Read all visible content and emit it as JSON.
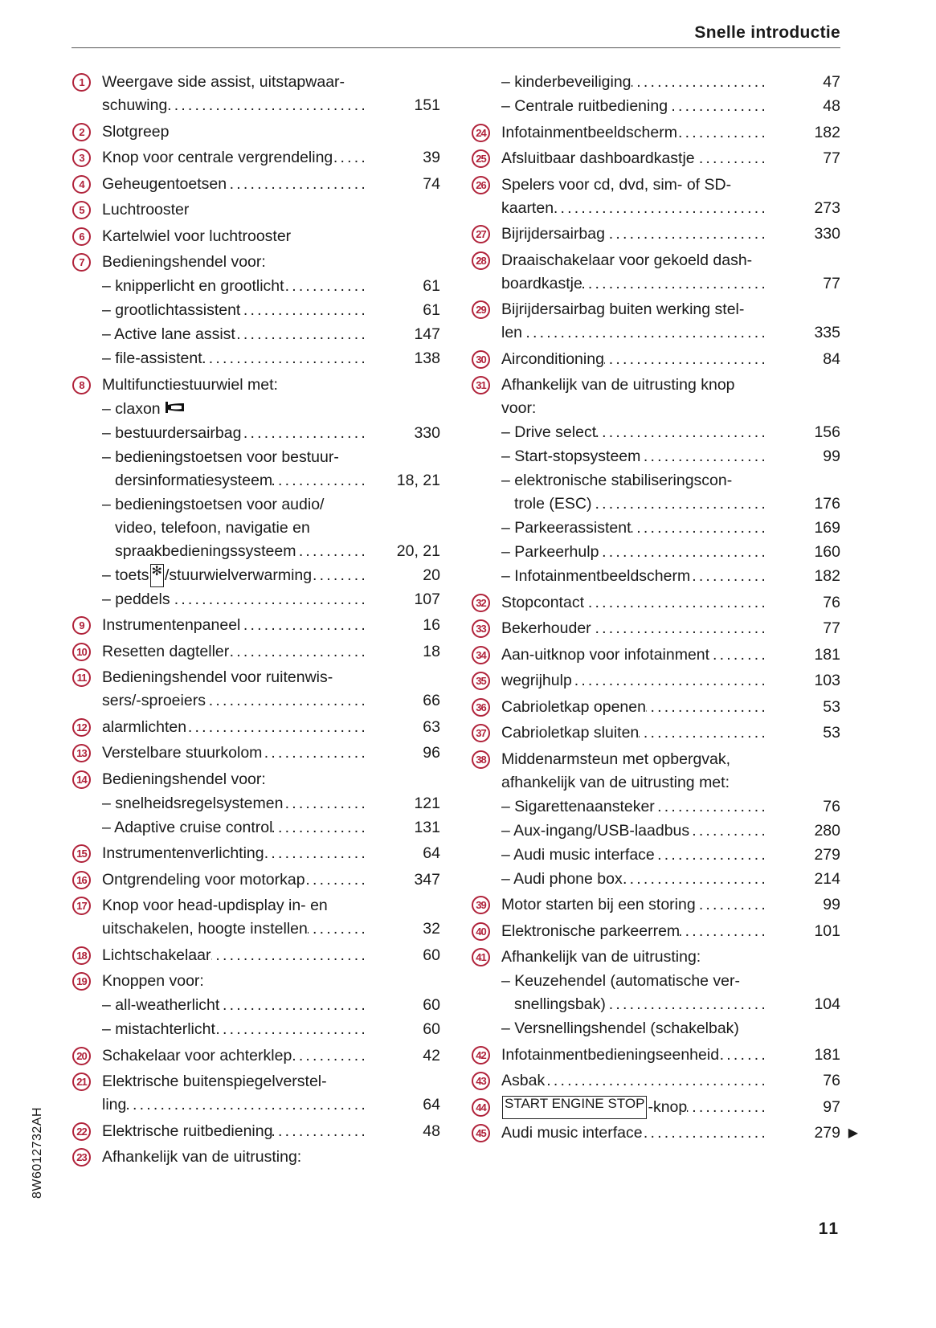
{
  "header": {
    "title": "Snelle introductie"
  },
  "footer": {
    "page_number": "11",
    "doc_code": "8W6012732AH"
  },
  "colors": {
    "callout": "#b0223a",
    "text": "#1a1a1a"
  },
  "left": [
    {
      "n": "1",
      "text": [
        "Weergave side assist, uitstapwaar-",
        "schuwing"
      ],
      "page": "151"
    },
    {
      "n": "2",
      "text": [
        "Slotgreep"
      ]
    },
    {
      "n": "3",
      "text": [
        "Knop voor centrale vergrendeling"
      ],
      "page": "39"
    },
    {
      "n": "4",
      "text": [
        "Geheugentoetsen"
      ],
      "page": "74"
    },
    {
      "n": "5",
      "text": [
        "Luchtrooster"
      ]
    },
    {
      "n": "6",
      "text": [
        "Kartelwiel voor luchtrooster"
      ]
    },
    {
      "n": "7",
      "text": [
        "Bedieningshendel voor:"
      ]
    },
    {
      "sub": true,
      "text": [
        "– knipperlicht en grootlicht"
      ],
      "page": "61"
    },
    {
      "sub": true,
      "text": [
        "– grootlichtassistent"
      ],
      "page": "61"
    },
    {
      "sub": true,
      "text": [
        "– Active lane assist"
      ],
      "page": "147"
    },
    {
      "sub": true,
      "text": [
        "– file-assistent"
      ],
      "page": "138"
    },
    {
      "n": "8",
      "text": [
        "Multifunctiestuurwiel met:"
      ]
    },
    {
      "sub": true,
      "text": [
        "– claxon"
      ],
      "icon": "horn-icon"
    },
    {
      "sub": true,
      "text": [
        "– bestuurdersairbag"
      ],
      "page": "330"
    },
    {
      "sub": true,
      "text": [
        "– bedieningstoetsen voor bestuur-",
        "dersinformatiesysteem"
      ],
      "page": "18, 21"
    },
    {
      "sub": true,
      "text": [
        "– bedieningstoetsen voor audio/",
        "video, telefoon, navigatie en",
        "spraakbedieningssysteem"
      ],
      "page": "20, 21"
    },
    {
      "sub": true,
      "text": [
        "– toets"
      ],
      "box": "✻",
      "after_box": "/stuurwielverwarming",
      "page": "20"
    },
    {
      "sub": true,
      "text": [
        "– peddels"
      ],
      "page": "107"
    },
    {
      "n": "9",
      "text": [
        "Instrumentenpaneel"
      ],
      "page": "16"
    },
    {
      "n": "10",
      "text": [
        "Resetten dagteller"
      ],
      "page": "18"
    },
    {
      "n": "11",
      "text": [
        "Bedieningshendel voor ruitenwis-",
        "sers/-sproeiers"
      ],
      "page": "66"
    },
    {
      "n": "12",
      "text": [
        "alarmlichten"
      ],
      "page": "63"
    },
    {
      "n": "13",
      "text": [
        "Verstelbare stuurkolom"
      ],
      "page": "96"
    },
    {
      "n": "14",
      "text": [
        "Bedieningshendel voor:"
      ]
    },
    {
      "sub": true,
      "text": [
        "– snelheidsregelsystemen"
      ],
      "page": "121"
    },
    {
      "sub": true,
      "text": [
        "– Adaptive cruise control"
      ],
      "page": "131"
    },
    {
      "n": "15",
      "text": [
        "Instrumentenverlichting"
      ],
      "page": "64"
    },
    {
      "n": "16",
      "text": [
        "Ontgrendeling voor motorkap"
      ],
      "page": "347"
    },
    {
      "n": "17",
      "text": [
        "Knop voor head-updisplay in- en",
        "uitschakelen, hoogte instellen"
      ],
      "page": "32"
    },
    {
      "n": "18",
      "text": [
        "Lichtschakelaar"
      ],
      "page": "60"
    },
    {
      "n": "19",
      "text": [
        "Knoppen voor:"
      ]
    },
    {
      "sub": true,
      "text": [
        "– all-weatherlicht"
      ],
      "page": "60"
    },
    {
      "sub": true,
      "text": [
        "– mistachterlicht"
      ],
      "page": "60"
    },
    {
      "n": "20",
      "text": [
        "Schakelaar voor achterklep"
      ],
      "page": "42"
    },
    {
      "n": "21",
      "text": [
        "Elektrische buitenspiegelverstel-",
        "ling"
      ],
      "page": "64"
    },
    {
      "n": "22",
      "text": [
        "Elektrische ruitbediening"
      ],
      "page": "48"
    },
    {
      "n": "23",
      "text": [
        "Afhankelijk van de uitrusting:"
      ]
    }
  ],
  "right": [
    {
      "sub": true,
      "first": true,
      "text": [
        "– kinderbeveiliging"
      ],
      "page": "47"
    },
    {
      "sub": true,
      "text": [
        "– Centrale ruitbediening"
      ],
      "page": "48"
    },
    {
      "n": "24",
      "text": [
        "Infotainmentbeeldscherm"
      ],
      "page": "182"
    },
    {
      "n": "25",
      "text": [
        "Afsluitbaar dashboardkastje"
      ],
      "page": "77"
    },
    {
      "n": "26",
      "text": [
        "Spelers voor cd, dvd, sim- of SD-",
        "kaarten"
      ],
      "page": "273"
    },
    {
      "n": "27",
      "text": [
        "Bijrijdersairbag"
      ],
      "page": "330"
    },
    {
      "n": "28",
      "text": [
        "Draaischakelaar voor gekoeld dash-",
        "boardkastje"
      ],
      "page": "77"
    },
    {
      "n": "29",
      "text": [
        "Bijrijdersairbag buiten werking stel-",
        "len"
      ],
      "page": "335"
    },
    {
      "n": "30",
      "text": [
        "Airconditioning"
      ],
      "page": "84"
    },
    {
      "n": "31",
      "text": [
        "Afhankelijk van de uitrusting knop",
        "voor:"
      ]
    },
    {
      "sub": true,
      "text": [
        "– Drive select"
      ],
      "page": "156"
    },
    {
      "sub": true,
      "text": [
        "– Start-stopsysteem"
      ],
      "page": "99"
    },
    {
      "sub": true,
      "text": [
        "– elektronische stabiliseringscon-",
        "trole (ESC)"
      ],
      "page": "176"
    },
    {
      "sub": true,
      "text": [
        "– Parkeerassistent"
      ],
      "page": "169"
    },
    {
      "sub": true,
      "text": [
        "– Parkeerhulp"
      ],
      "page": "160"
    },
    {
      "sub": true,
      "text": [
        "– Infotainmentbeeldscherm"
      ],
      "page": "182"
    },
    {
      "n": "32",
      "text": [
        "Stopcontact"
      ],
      "page": "76"
    },
    {
      "n": "33",
      "text": [
        "Bekerhouder"
      ],
      "page": "77"
    },
    {
      "n": "34",
      "text": [
        "Aan-uitknop voor infotainment"
      ],
      "page": "181"
    },
    {
      "n": "35",
      "text": [
        "wegrijhulp"
      ],
      "page": "103"
    },
    {
      "n": "36",
      "text": [
        "Cabrioletkap openen"
      ],
      "page": "53"
    },
    {
      "n": "37",
      "text": [
        "Cabrioletkap sluiten"
      ],
      "page": "53"
    },
    {
      "n": "38",
      "text": [
        "Middenarmsteun met opbergvak,",
        "afhankelijk van de uitrusting met:"
      ]
    },
    {
      "sub": true,
      "text": [
        "– Sigarettenaansteker"
      ],
      "page": "76"
    },
    {
      "sub": true,
      "text": [
        "– Aux-ingang/USB-laadbus"
      ],
      "page": "280"
    },
    {
      "sub": true,
      "text": [
        "– Audi music interface"
      ],
      "page": "279"
    },
    {
      "sub": true,
      "text": [
        "– Audi phone box"
      ],
      "page": "214"
    },
    {
      "n": "39",
      "text": [
        "Motor starten bij een storing"
      ],
      "page": "99"
    },
    {
      "n": "40",
      "text": [
        "Elektronische parkeerrem"
      ],
      "page": "101"
    },
    {
      "n": "41",
      "text": [
        "Afhankelijk van de uitrusting:"
      ]
    },
    {
      "sub": true,
      "text": [
        "– Keuzehendel (automatische ver-",
        "snellingsbak)"
      ],
      "page": "104"
    },
    {
      "sub": true,
      "text": [
        "– Versnellingshendel (schakelbak)"
      ]
    },
    {
      "n": "42",
      "text": [
        "Infotainmentbedieningseenheid"
      ],
      "page": "181"
    },
    {
      "n": "43",
      "text": [
        "Asbak"
      ],
      "page": "76"
    },
    {
      "n": "44",
      "text": [
        ""
      ],
      "box": "START ENGINE STOP",
      "after_box": "-knop",
      "page": "97"
    },
    {
      "n": "45",
      "text": [
        "Audi music interface"
      ],
      "page": "279",
      "continued": "▶"
    }
  ]
}
